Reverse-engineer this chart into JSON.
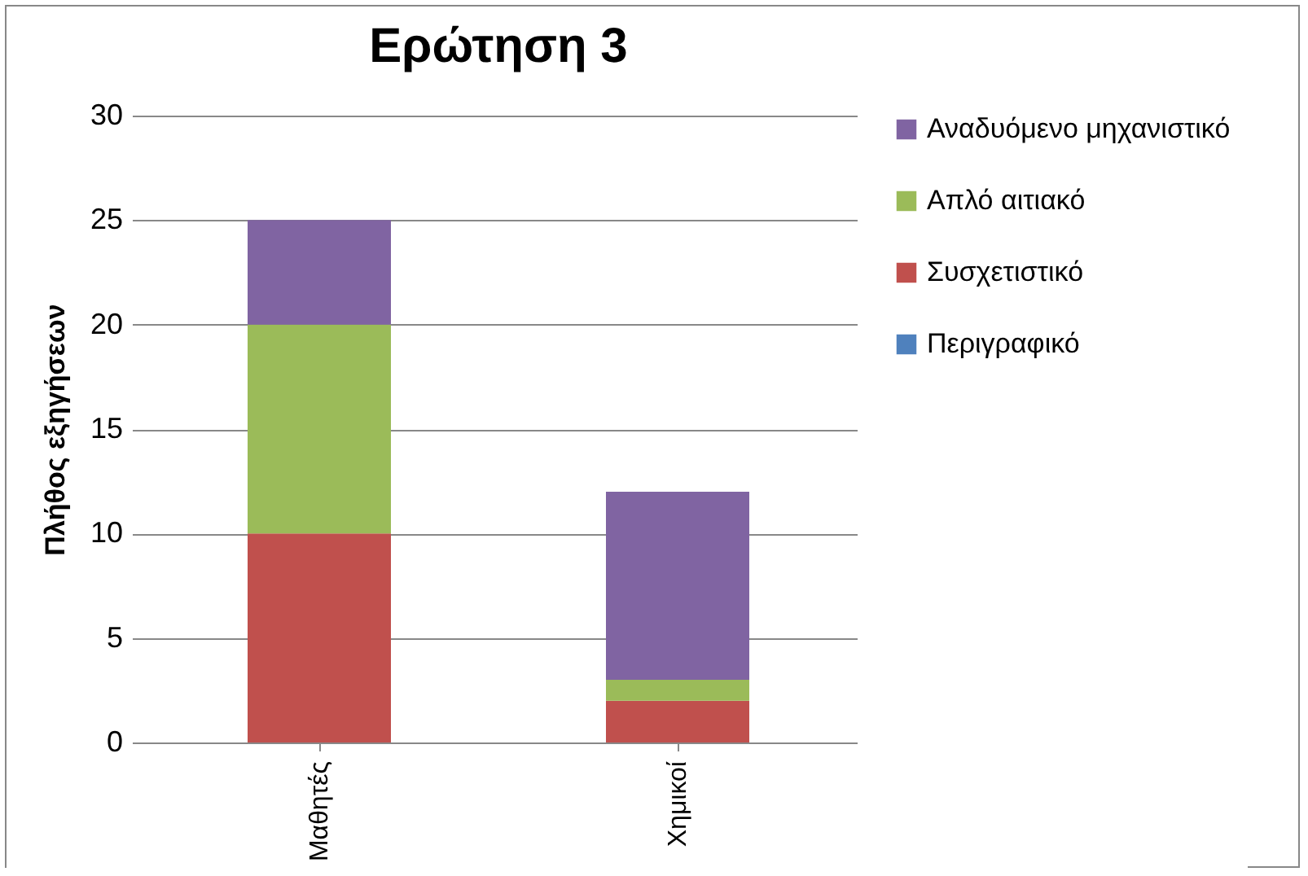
{
  "chart_data": {
    "type": "bar",
    "title": "Ερώτηση 3",
    "ylabel": "Πλήθος εξηγήσεων",
    "categories": [
      "Μαθητές",
      "Χημικοί"
    ],
    "stacked": true,
    "ylim": [
      0,
      30
    ],
    "yticks": [
      0,
      5,
      10,
      15,
      20,
      25,
      30
    ],
    "grid": "y",
    "legend": "right",
    "series": [
      {
        "name": "Περιγραφικό",
        "color": "#4f81bd",
        "values": [
          0,
          0
        ]
      },
      {
        "name": "Συσχετιστικό",
        "color": "#c0504d",
        "values": [
          10,
          2
        ]
      },
      {
        "name": "Απλό αιτιακό",
        "color": "#9bbb59",
        "values": [
          10,
          1
        ]
      },
      {
        "name": "Αναδυόμενο μηχανιστικό",
        "color": "#8064a2",
        "values": [
          5,
          9
        ]
      }
    ]
  }
}
